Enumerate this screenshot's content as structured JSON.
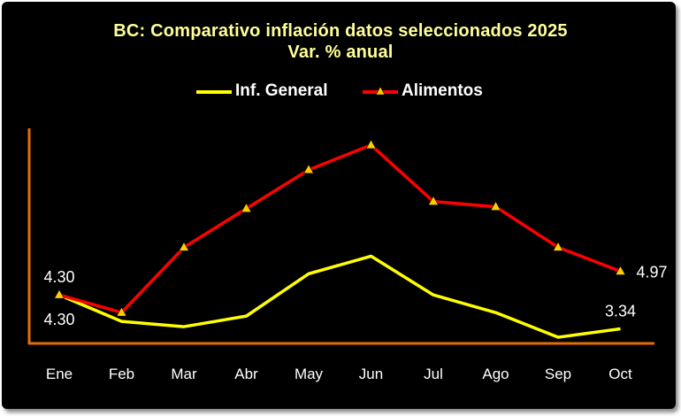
{
  "colors": {
    "background": "#000000",
    "title": "#ffff99",
    "series_general": "#ffff00",
    "series_alimentos": "#ff0000",
    "marker_fill": "#ffcc00",
    "axis": "#e46c0a",
    "text": "#ffffff"
  },
  "chart_data": {
    "type": "line",
    "title": "BC: Comparativo inflación datos seleccionados 2025",
    "subtitle": "Var. % anual",
    "categories": [
      "Ene",
      "Feb",
      "Mar",
      "Abr",
      "May",
      "Jun",
      "Jul",
      "Ago",
      "Sep",
      "Oct"
    ],
    "series": [
      {
        "name": "Inf. General",
        "marker": "none",
        "values": [
          4.3,
          3.55,
          3.4,
          3.7,
          4.9,
          5.4,
          4.3,
          3.8,
          3.1,
          3.34
        ]
      },
      {
        "name": "Alimentos",
        "marker": "triangle-icon",
        "values": [
          4.3,
          3.8,
          5.65,
          6.75,
          7.85,
          8.55,
          6.95,
          6.8,
          5.65,
          4.97
        ]
      }
    ],
    "data_labels": [
      {
        "text": "4.30",
        "series": 1,
        "index": 0,
        "position": "above"
      },
      {
        "text": "4.30",
        "series": 0,
        "index": 0,
        "position": "below"
      },
      {
        "text": "4.97",
        "series": 1,
        "index": 9,
        "position": "right"
      },
      {
        "text": "3.34",
        "series": 0,
        "index": 9,
        "position": "above"
      }
    ],
    "ylim": [
      2.95,
      8.95
    ],
    "grid": false,
    "legend_position": "top"
  }
}
